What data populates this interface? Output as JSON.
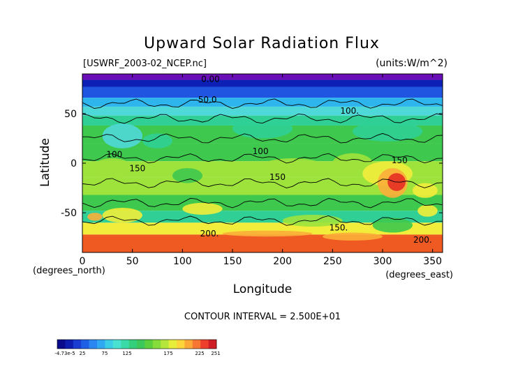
{
  "chart_data": {
    "type": "heatmap",
    "title": "Upward Solar Radiation Flux",
    "subtitle_left": "[USWRF_2003-02_NCEP.nc]",
    "subtitle_right": "(units:W/m^2)",
    "xlabel": "Longitude",
    "xunit": "(degrees_east)",
    "ylabel": "Latitude",
    "yunit": "(degrees_north)",
    "xlim": [
      0,
      360
    ],
    "ylim": [
      -90,
      90
    ],
    "xticks": [
      0,
      50,
      100,
      150,
      200,
      250,
      300,
      350
    ],
    "yticks": [
      -50,
      0,
      50
    ],
    "footer": "CONTOUR INTERVAL = 2.500E+01",
    "contour_labels": [
      {
        "text": "0.00",
        "lon": 128,
        "lat": 82
      },
      {
        "text": "50.0",
        "lon": 125,
        "lat": 61
      },
      {
        "text": "100.",
        "lon": 267,
        "lat": 50
      },
      {
        "text": "100",
        "lon": 32,
        "lat": 6
      },
      {
        "text": "100",
        "lon": 178,
        "lat": 9
      },
      {
        "text": "150",
        "lon": 55,
        "lat": -8
      },
      {
        "text": "150",
        "lon": 317,
        "lat": 0
      },
      {
        "text": "150",
        "lon": 195,
        "lat": -17
      },
      {
        "text": "150.",
        "lon": 256,
        "lat": -68
      },
      {
        "text": "200.",
        "lon": 127,
        "lat": -74
      },
      {
        "text": "200.",
        "lon": 340,
        "lat": -80
      }
    ],
    "colorbar": {
      "tick_labels": [
        "-4.73e-5",
        "25",
        "75",
        "125",
        "175",
        "225",
        "251"
      ],
      "colors": [
        "#0a0a8c",
        "#0e1fb0",
        "#1a3ed2",
        "#1f5fe6",
        "#2a86f0",
        "#31a9f2",
        "#3ccde6",
        "#49e2d0",
        "#3ad9a8",
        "#34cf7c",
        "#3cc85a",
        "#5ccf3c",
        "#86dc3a",
        "#b5e63c",
        "#e6ed3a",
        "#fbd53a",
        "#fca836",
        "#f77732",
        "#ee3f2c",
        "#d01e26"
      ]
    },
    "field_colors": {
      "polar_north": "#6a0fb8",
      "deep_blue": "#0d1fb4",
      "blue": "#1f55e0",
      "light_blue": "#2fb5ee",
      "cyan": "#4fd8d8",
      "teal": "#2fcf95",
      "green": "#3ec84e",
      "light_green": "#9ee23c",
      "yellow": "#f1ed3a",
      "orange": "#fbae3a",
      "red_orange": "#ef5a22",
      "red": "#e52e24"
    }
  }
}
